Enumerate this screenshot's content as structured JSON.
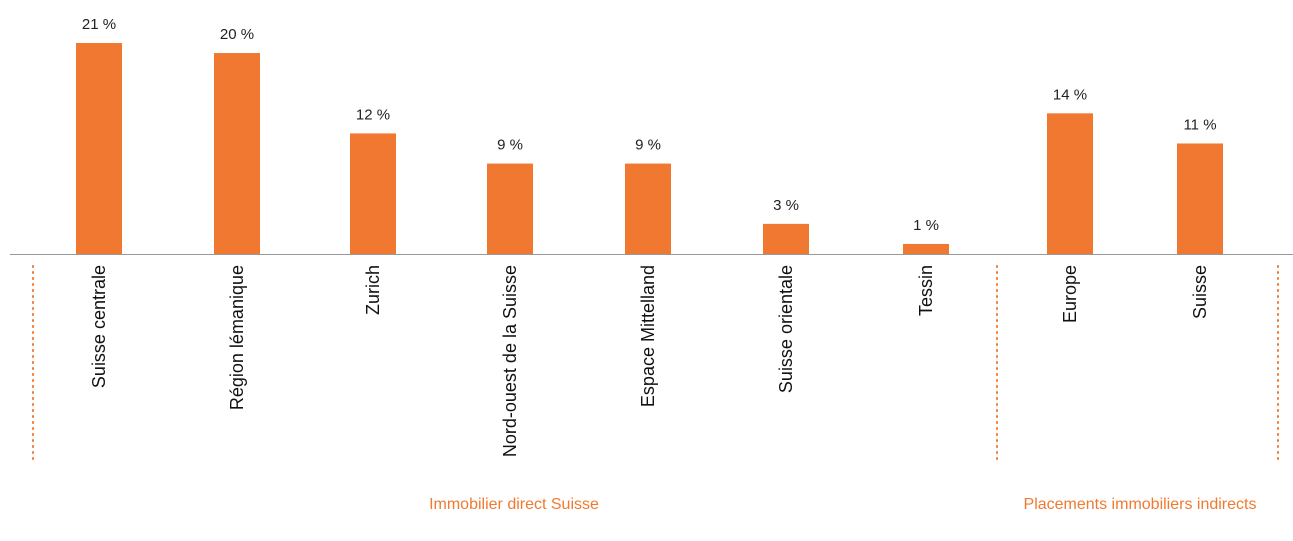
{
  "chart_data": {
    "type": "bar",
    "categories": [
      "Suisse centrale",
      "Région lémanique",
      "Zurich",
      "Nord-ouest de la Suisse",
      "Espace Mittelland",
      "Suisse orientale",
      "Tessin",
      "Europe",
      "Suisse"
    ],
    "values": [
      21,
      20,
      12,
      9,
      9,
      3,
      1,
      14,
      11
    ],
    "value_labels": [
      "21 %",
      "20 %",
      "12 %",
      "9 %",
      "9 %",
      "3 %",
      "1 %",
      "14 %",
      "11 %"
    ],
    "color": "#f07830",
    "groups": [
      "Immobilier direct Suisse",
      "Placements immobiliers indirects"
    ]
  }
}
